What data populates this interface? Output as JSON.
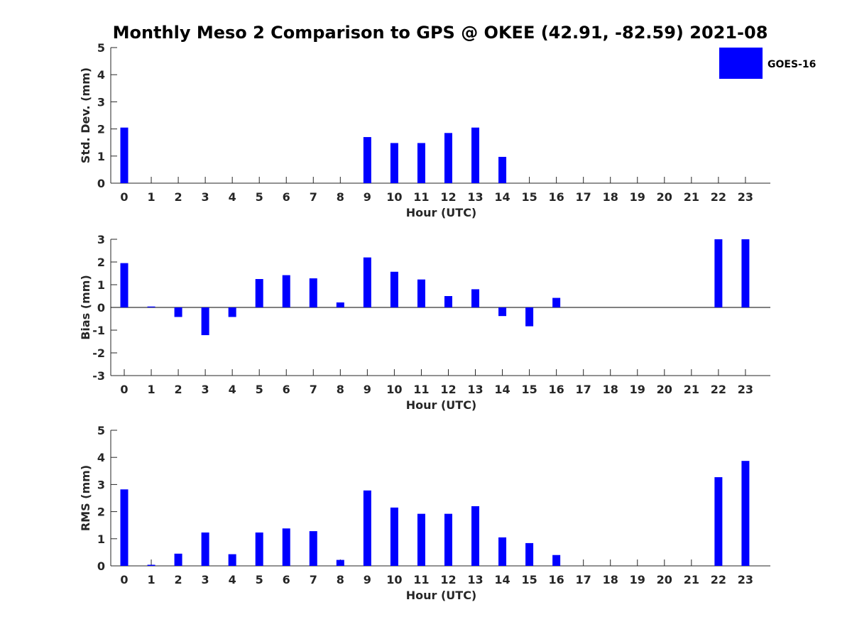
{
  "title": "Monthly Meso 2 Comparison to GPS @ OKEE (42.91, -82.59) 2021-08",
  "legend": {
    "label": "GOES-16",
    "color": "#0000ff",
    "placement": "top-right"
  },
  "colors": {
    "bar": "#0000ff",
    "axis": "#262626"
  },
  "chart_data": [
    {
      "type": "bar",
      "xlabel": "Hour (UTC)",
      "ylabel": "Std. Dev. (mm)",
      "ylim": [
        0,
        5
      ],
      "yticks": [
        0,
        1,
        2,
        3,
        4,
        5
      ],
      "categories": [
        "0",
        "1",
        "2",
        "3",
        "4",
        "5",
        "6",
        "7",
        "8",
        "9",
        "10",
        "11",
        "12",
        "13",
        "14",
        "15",
        "16",
        "17",
        "18",
        "19",
        "20",
        "21",
        "22",
        "23"
      ],
      "series": [
        {
          "name": "GOES-16",
          "values": [
            2.05,
            0,
            0,
            0,
            0,
            0,
            0,
            0,
            0,
            1.7,
            1.48,
            1.48,
            1.85,
            2.05,
            0.97,
            0,
            0,
            0,
            0,
            0,
            0,
            0,
            0,
            0
          ]
        }
      ]
    },
    {
      "type": "bar",
      "xlabel": "Hour (UTC)",
      "ylabel": "Bias (mm)",
      "ylim": [
        -3,
        3
      ],
      "yticks": [
        -3,
        -2,
        -1,
        0,
        1,
        2,
        3
      ],
      "categories": [
        "0",
        "1",
        "2",
        "3",
        "4",
        "5",
        "6",
        "7",
        "8",
        "9",
        "10",
        "11",
        "12",
        "13",
        "14",
        "15",
        "16",
        "17",
        "18",
        "19",
        "20",
        "21",
        "22",
        "23"
      ],
      "series": [
        {
          "name": "GOES-16",
          "values": [
            1.95,
            0.04,
            -0.42,
            -1.22,
            -0.42,
            1.25,
            1.42,
            1.28,
            0.22,
            2.2,
            1.57,
            1.23,
            0.5,
            0.8,
            -0.38,
            -0.83,
            0.42,
            0,
            0,
            0,
            0,
            0,
            3.0,
            3.0
          ]
        }
      ]
    },
    {
      "type": "bar",
      "xlabel": "Hour (UTC)",
      "ylabel": "RMS (mm)",
      "ylim": [
        0,
        5
      ],
      "yticks": [
        0,
        1,
        2,
        3,
        4,
        5
      ],
      "categories": [
        "0",
        "1",
        "2",
        "3",
        "4",
        "5",
        "6",
        "7",
        "8",
        "9",
        "10",
        "11",
        "12",
        "13",
        "14",
        "15",
        "16",
        "17",
        "18",
        "19",
        "20",
        "21",
        "22",
        "23"
      ],
      "series": [
        {
          "name": "GOES-16",
          "values": [
            2.82,
            0.04,
            0.45,
            1.23,
            0.43,
            1.23,
            1.38,
            1.28,
            0.22,
            2.78,
            2.15,
            1.92,
            1.92,
            2.2,
            1.05,
            0.84,
            0.4,
            0,
            0,
            0,
            0,
            0,
            3.27,
            3.87
          ]
        }
      ]
    }
  ]
}
